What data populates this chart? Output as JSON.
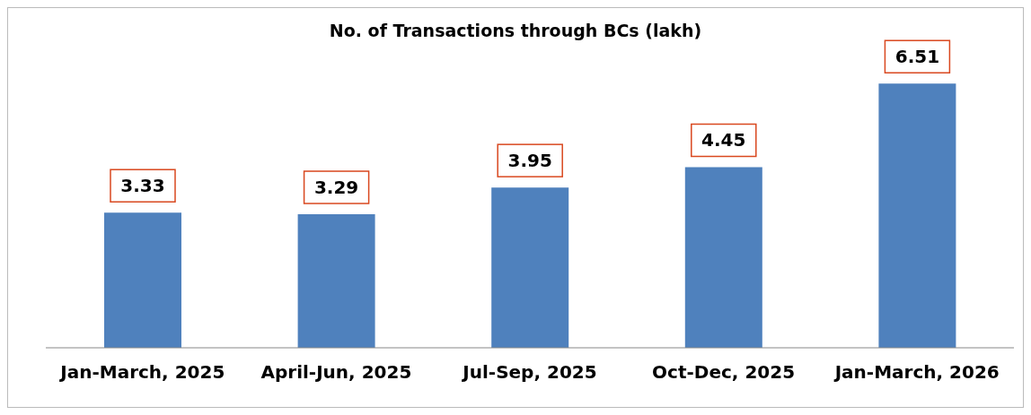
{
  "chart_data": {
    "type": "bar",
    "title": "No. of Transactions through BCs (lakh)",
    "categories": [
      "Jan-March, 2025",
      "April-Jun, 2025",
      "Jul-Sep, 2025",
      "Oct-Dec, 2025",
      "Jan-March, 2026"
    ],
    "values": [
      3.33,
      3.29,
      3.95,
      4.45,
      6.51
    ],
    "color": "#4f81bd",
    "data_labels": true
  }
}
